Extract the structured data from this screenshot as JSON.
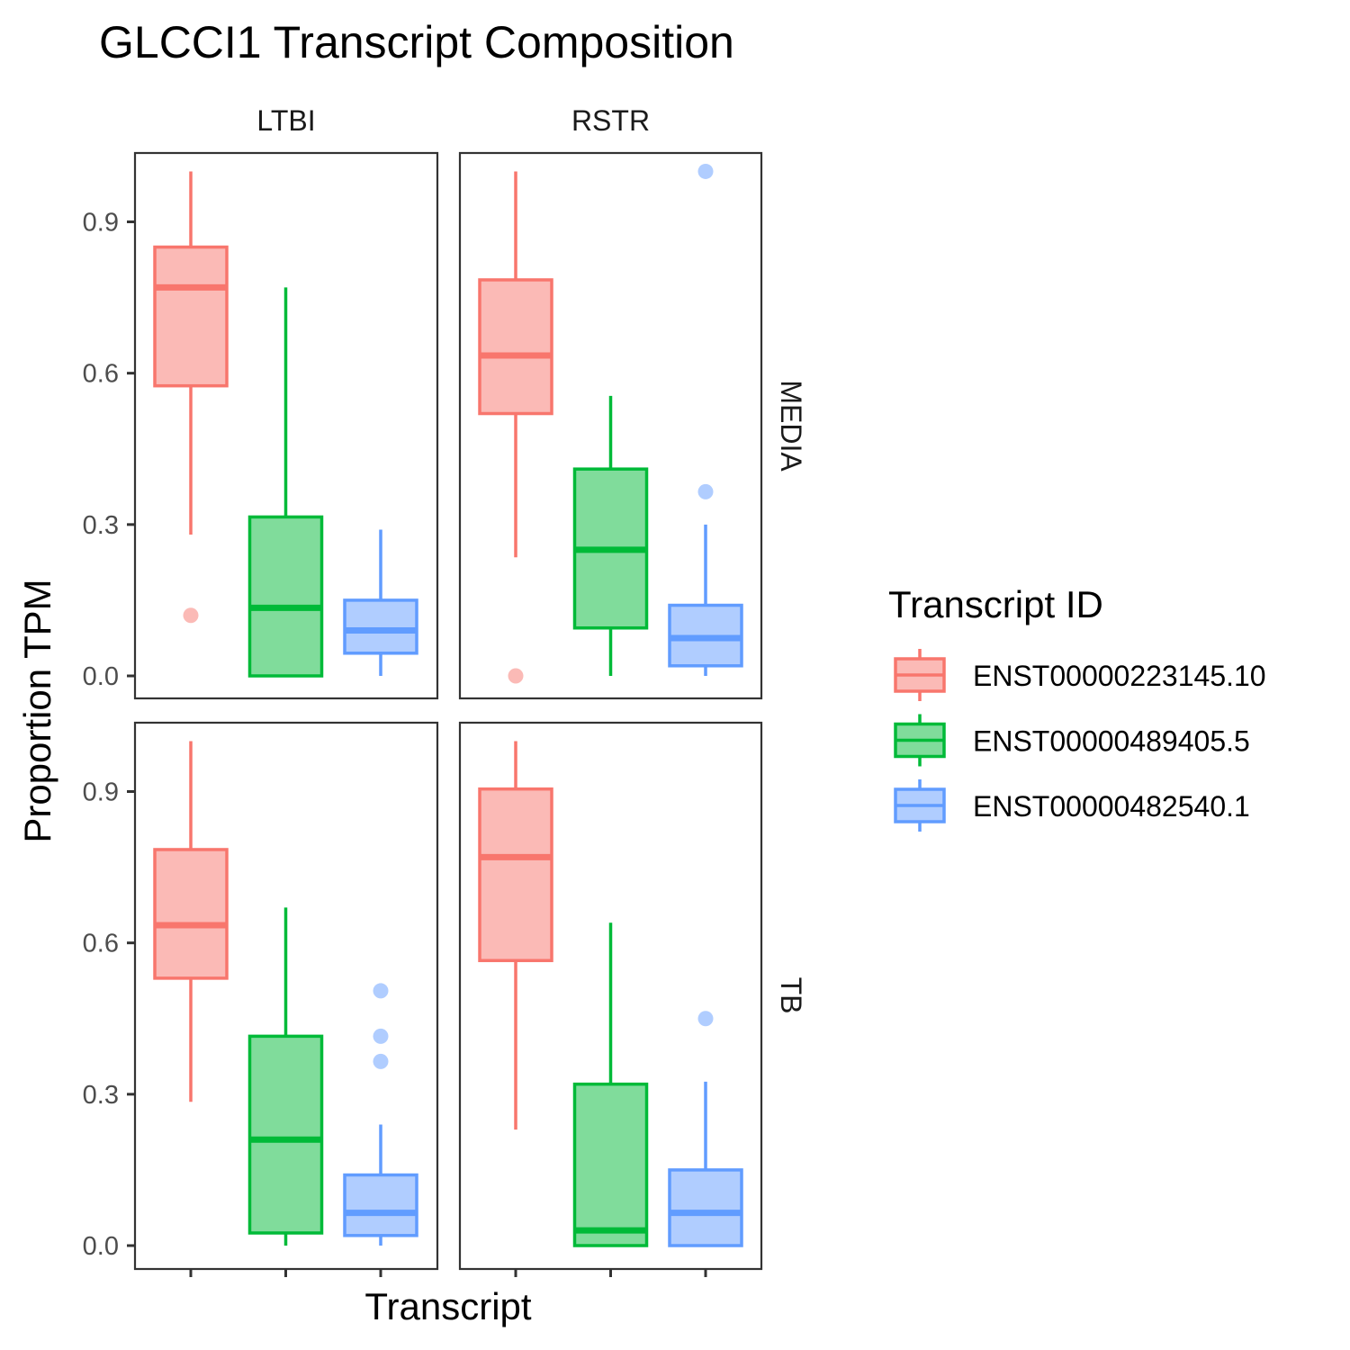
{
  "chart_data": {
    "type": "box",
    "title": "GLCCI1 Transcript Composition",
    "xlabel": "Transcript",
    "ylabel": "Proportion TPM",
    "ylim": [
      -0.05,
      1.15
    ],
    "y_ticks": [
      0.0,
      0.3,
      0.6,
      0.9
    ],
    "y_tick_labels": [
      "0.0",
      "0.3",
      "0.6",
      "0.9"
    ],
    "x_tick_labels": false,
    "grid": false,
    "facet_columns": [
      "LTBI",
      "RSTR"
    ],
    "facet_rows": [
      "MEDIA",
      "TB"
    ],
    "legend": {
      "title": "Transcript ID",
      "position": "right",
      "entries": [
        "ENST00000223145.10",
        "ENST00000489405.5",
        "ENST00000482540.1"
      ]
    },
    "series_colors": {
      "ENST00000223145.10": {
        "line": "#F8766D",
        "fill": "#FBBAB6"
      },
      "ENST00000489405.5": {
        "line": "#00BA38",
        "fill": "#80DC9B"
      },
      "ENST00000482540.1": {
        "line": "#619CFF",
        "fill": "#B0CDFF"
      }
    },
    "panels": [
      {
        "column": "LTBI",
        "row": "MEDIA",
        "boxes": [
          {
            "series": "ENST00000223145.10",
            "min": 0.28,
            "q1": 0.575,
            "median": 0.77,
            "q3": 0.85,
            "max": 1.0,
            "outliers": [
              0.12
            ]
          },
          {
            "series": "ENST00000489405.5",
            "min": 0.0,
            "q1": 0.0,
            "median": 0.135,
            "q3": 0.315,
            "max": 0.77,
            "outliers": []
          },
          {
            "series": "ENST00000482540.1",
            "min": 0.0,
            "q1": 0.045,
            "median": 0.09,
            "q3": 0.15,
            "max": 0.29,
            "outliers": []
          }
        ]
      },
      {
        "column": "RSTR",
        "row": "MEDIA",
        "boxes": [
          {
            "series": "ENST00000223145.10",
            "min": 0.235,
            "q1": 0.52,
            "median": 0.635,
            "q3": 0.785,
            "max": 1.0,
            "outliers": [
              0.0
            ]
          },
          {
            "series": "ENST00000489405.5",
            "min": 0.0,
            "q1": 0.095,
            "median": 0.25,
            "q3": 0.41,
            "max": 0.555,
            "outliers": []
          },
          {
            "series": "ENST00000482540.1",
            "min": 0.0,
            "q1": 0.02,
            "median": 0.075,
            "q3": 0.14,
            "max": 0.3,
            "outliers": [
              0.365,
              1.0
            ]
          }
        ]
      },
      {
        "column": "LTBI",
        "row": "TB",
        "boxes": [
          {
            "series": "ENST00000223145.10",
            "min": 0.285,
            "q1": 0.53,
            "median": 0.635,
            "q3": 0.785,
            "max": 1.0,
            "outliers": []
          },
          {
            "series": "ENST00000489405.5",
            "min": 0.0,
            "q1": 0.025,
            "median": 0.21,
            "q3": 0.415,
            "max": 0.67,
            "outliers": []
          },
          {
            "series": "ENST00000482540.1",
            "min": 0.0,
            "q1": 0.02,
            "median": 0.065,
            "q3": 0.14,
            "max": 0.24,
            "outliers": [
              0.365,
              0.415,
              0.505
            ]
          }
        ]
      },
      {
        "column": "RSTR",
        "row": "TB",
        "boxes": [
          {
            "series": "ENST00000223145.10",
            "min": 0.23,
            "q1": 0.565,
            "median": 0.77,
            "q3": 0.905,
            "max": 1.0,
            "outliers": []
          },
          {
            "series": "ENST00000489405.5",
            "min": 0.0,
            "q1": 0.0,
            "median": 0.03,
            "q3": 0.32,
            "max": 0.64,
            "outliers": []
          },
          {
            "series": "ENST00000482540.1",
            "min": 0.0,
            "q1": 0.0,
            "median": 0.065,
            "q3": 0.15,
            "max": 0.325,
            "outliers": [
              0.45
            ]
          }
        ]
      }
    ]
  }
}
